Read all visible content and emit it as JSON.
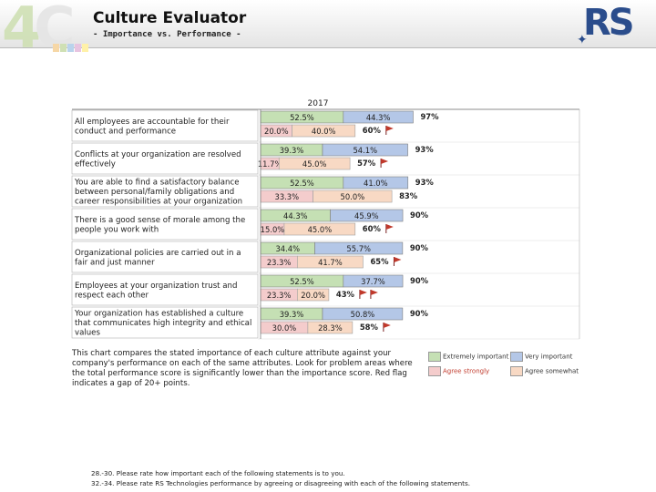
{
  "header": {
    "title": "Culture Evaluator",
    "subtitle": "- Importance vs. Performance -",
    "brand_left": "4C",
    "brand_right": "RS"
  },
  "chart_data": {
    "type": "bar",
    "title": "2017",
    "categories": [
      "All employees are accountable for their conduct and performance",
      "Conflicts at your organization are resolved effectively",
      "You are able to find a satisfactory balance between personal/family obligations and career responsibilities at your organization",
      "There is a good sense of morale among the people you work with",
      "Organizational policies are carried out in a fair and just manner",
      "Employees at your organization trust and respect each other",
      "Your organization has established a culture that communicates high integrity and ethical values"
    ],
    "importance": {
      "series": [
        {
          "name": "Extremely important",
          "color": "#c5e0b4",
          "values": [
            52.5,
            39.3,
            52.5,
            44.3,
            34.4,
            52.5,
            39.3
          ]
        },
        {
          "name": "Very important",
          "color": "#b4c7e7",
          "values": [
            44.3,
            54.1,
            41.0,
            45.9,
            55.7,
            37.7,
            50.8
          ]
        }
      ],
      "totals": [
        "97%",
        "93%",
        "93%",
        "90%",
        "90%",
        "90%",
        "90%"
      ]
    },
    "performance": {
      "series": [
        {
          "name": "Agree strongly",
          "color": "#f4cccc",
          "values": [
            20.0,
            11.7,
            33.3,
            15.0,
            23.3,
            23.3,
            30.0
          ]
        },
        {
          "name": "Agree somewhat",
          "color": "#f8d9c4",
          "values": [
            40.0,
            45.0,
            50.0,
            45.0,
            41.7,
            20.0,
            28.3
          ]
        }
      ],
      "totals": [
        "60%",
        "57%",
        "83%",
        "60%",
        "65%",
        "43%",
        "58%"
      ],
      "flags": [
        1,
        1,
        0,
        1,
        1,
        2,
        1
      ]
    },
    "value_labels": {
      "importance": [
        [
          "52.5%",
          "44.3%"
        ],
        [
          "39.3%",
          "54.1%"
        ],
        [
          "52.5%",
          "41.0%"
        ],
        [
          "44.3%",
          "45.9%"
        ],
        [
          "34.4%",
          "55.7%"
        ],
        [
          "52.5%",
          "37.7%"
        ],
        [
          "39.3%",
          "50.8%"
        ]
      ],
      "performance": [
        [
          "20.0%",
          "40.0%"
        ],
        [
          "11.7%",
          "45.0%"
        ],
        [
          "33.3%",
          "50.0%"
        ],
        [
          "15.0%",
          "45.0%"
        ],
        [
          "23.3%",
          "41.7%"
        ],
        [
          "23.3%",
          "20.0%"
        ],
        [
          "30.0%",
          "28.3%"
        ]
      ]
    },
    "xlim": [
      0,
      100
    ],
    "grid": false,
    "legend": "bottom-right"
  },
  "legend": {
    "items": [
      {
        "label": "Extremely important",
        "color": "#c5e0b4"
      },
      {
        "label": "Very important",
        "color": "#b4c7e7"
      },
      {
        "label": "Agree strongly",
        "color": "#f4cccc",
        "text_color": "#c0392b"
      },
      {
        "label": "Agree somewhat",
        "color": "#f8d9c4"
      }
    ]
  },
  "note": "This chart compares the stated importance of each culture attribute against your company's performance on each of the same attributes. Look for problem areas where the total performance score is significantly lower than the importance score. Red flag indicates a gap of 20+ points.",
  "footnotes": [
    "28.-30. Please rate how important each of the following statements is to you.",
    "32.-34. Please rate RS Technologies performance by agreeing or disagreeing with each of the following statements."
  ],
  "colors": {
    "border": "#8c8c8c",
    "flag": "#c0392b",
    "brand_blue": "#2b4d8c"
  }
}
